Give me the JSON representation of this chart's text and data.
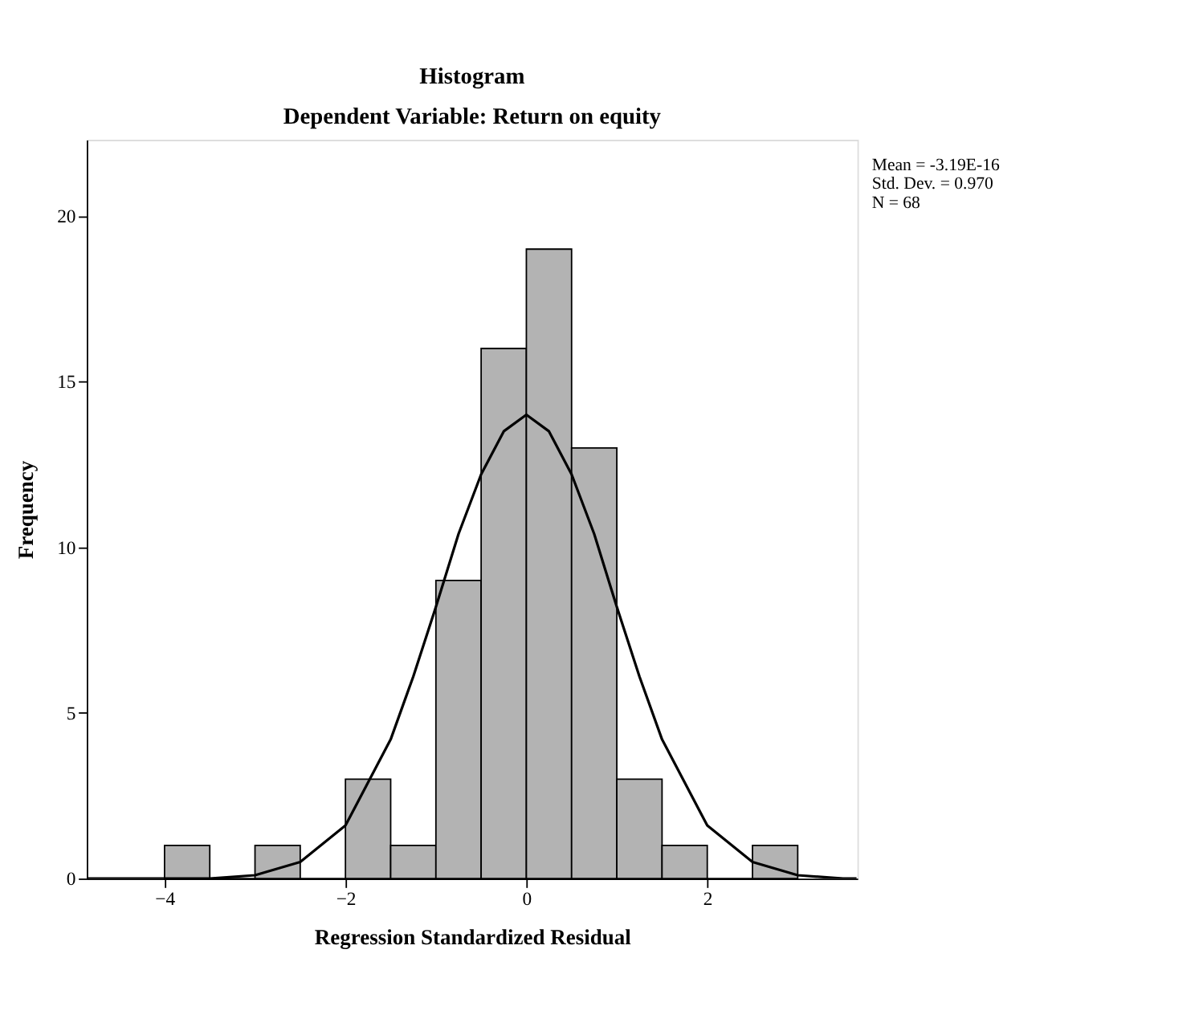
{
  "chart_data": {
    "type": "histogram",
    "title": "Histogram",
    "subtitle": "Dependent Variable: Return on equity",
    "xlabel": "Regression Standardized Residual",
    "ylabel": "Frequency",
    "bins": [
      -4,
      -3.5,
      -3,
      -2.5,
      -2,
      -1.5,
      -1,
      -0.5,
      0,
      0.5,
      1,
      1.5,
      2,
      2.5,
      3
    ],
    "values": [
      1,
      0,
      1,
      0,
      3,
      1,
      9,
      16,
      19,
      13,
      3,
      1,
      0,
      1
    ],
    "color": "#b3b3b3",
    "series": [
      {
        "type": "line",
        "color": "#000000",
        "x": [
          -4.85,
          -4,
          -3.5,
          -3,
          -2.5,
          -2,
          -1.5,
          -1.25,
          -1,
          -0.75,
          -0.5,
          -0.25,
          0,
          0.25,
          0.5,
          0.75,
          1,
          1.25,
          1.5,
          2,
          2.5,
          3,
          3.5,
          3.65
        ],
        "values": [
          0,
          0,
          0,
          0.1,
          0.5,
          1.6,
          4.2,
          6.1,
          8.2,
          10.4,
          12.2,
          13.5,
          14,
          13.5,
          12.2,
          10.4,
          8.2,
          6.1,
          4.2,
          1.6,
          0.5,
          0.1,
          0,
          0
        ]
      }
    ],
    "xlim": [
      -4.86,
      3.66
    ],
    "ylim": [
      0,
      22.3
    ],
    "xticks": [
      -4,
      -2,
      0,
      2
    ],
    "yticks": [
      0,
      5,
      10,
      15,
      20
    ],
    "grid": false,
    "annotations": [
      "Mean = -3.19E-16",
      "Std. Dev. = 0.970",
      "N = 68"
    ]
  }
}
